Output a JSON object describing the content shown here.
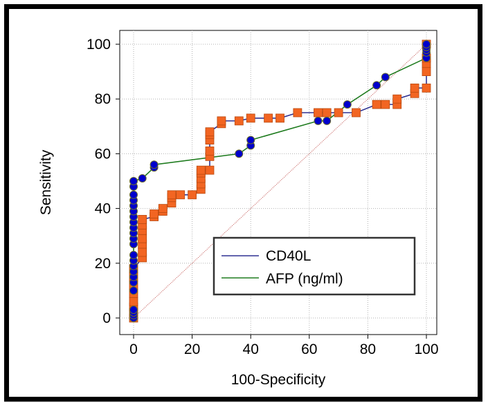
{
  "chart_data": {
    "type": "line",
    "xlabel": "100-Specificity",
    "ylabel": "Sensitivity",
    "xlim": [
      0,
      100
    ],
    "ylim": [
      0,
      100
    ],
    "x_ticks": [
      "0",
      "20",
      "40",
      "60",
      "80",
      "100"
    ],
    "y_ticks": [
      "0",
      "20",
      "40",
      "60",
      "80",
      "100"
    ],
    "grid": true,
    "legend_position": "bottom-right",
    "reference_line": {
      "from": [
        0,
        0
      ],
      "to": [
        100,
        100
      ],
      "color": "#c0504d",
      "style": "dotted"
    },
    "series": [
      {
        "name": "CD40L",
        "color": "#2e3192",
        "marker": "square",
        "marker_color": "#f26522",
        "points": [
          [
            0,
            0
          ],
          [
            0,
            2
          ],
          [
            0,
            4
          ],
          [
            0,
            6
          ],
          [
            0,
            9
          ],
          [
            0,
            12
          ],
          [
            0,
            15
          ],
          [
            0,
            18
          ],
          [
            3,
            22
          ],
          [
            3,
            24
          ],
          [
            3,
            27
          ],
          [
            3,
            29
          ],
          [
            3,
            32
          ],
          [
            3,
            34
          ],
          [
            3,
            36
          ],
          [
            7,
            37
          ],
          [
            7,
            38
          ],
          [
            10,
            39
          ],
          [
            10,
            40
          ],
          [
            13,
            42
          ],
          [
            13,
            44
          ],
          [
            13,
            45
          ],
          [
            16,
            45
          ],
          [
            20,
            45
          ],
          [
            23,
            47
          ],
          [
            23,
            49
          ],
          [
            23,
            51
          ],
          [
            23,
            53
          ],
          [
            23,
            54
          ],
          [
            26,
            54
          ],
          [
            26,
            59
          ],
          [
            26,
            61
          ],
          [
            26,
            65
          ],
          [
            26,
            67
          ],
          [
            26,
            68
          ],
          [
            30,
            71
          ],
          [
            30,
            72
          ],
          [
            36,
            72
          ],
          [
            40,
            73
          ],
          [
            46,
            73
          ],
          [
            50,
            73
          ],
          [
            56,
            75
          ],
          [
            63,
            75
          ],
          [
            66,
            75
          ],
          [
            70,
            75
          ],
          [
            76,
            75
          ],
          [
            83,
            78
          ],
          [
            86,
            78
          ],
          [
            90,
            78
          ],
          [
            90,
            80
          ],
          [
            96,
            82
          ],
          [
            96,
            84
          ],
          [
            100,
            84
          ],
          [
            100,
            90
          ],
          [
            100,
            93
          ],
          [
            100,
            95
          ],
          [
            100,
            100
          ]
        ]
      },
      {
        "name": "AFP (ng/ml)",
        "color": "#1e7b1e",
        "marker": "circle",
        "marker_color": "#0000cc",
        "points": [
          [
            0,
            0
          ],
          [
            0,
            1
          ],
          [
            0,
            2
          ],
          [
            0,
            3
          ],
          [
            0,
            10
          ],
          [
            0,
            13
          ],
          [
            0,
            15
          ],
          [
            0,
            17
          ],
          [
            0,
            19
          ],
          [
            0,
            21
          ],
          [
            0,
            23
          ],
          [
            0,
            27
          ],
          [
            0,
            29
          ],
          [
            0,
            31
          ],
          [
            0,
            33
          ],
          [
            0,
            35
          ],
          [
            0,
            37
          ],
          [
            0,
            39
          ],
          [
            0,
            41
          ],
          [
            0,
            43
          ],
          [
            0,
            45
          ],
          [
            0,
            48
          ],
          [
            0,
            50
          ],
          [
            3,
            51
          ],
          [
            7,
            55
          ],
          [
            7,
            56
          ],
          [
            36,
            60
          ],
          [
            40,
            63
          ],
          [
            40,
            65
          ],
          [
            63,
            72
          ],
          [
            66,
            72
          ],
          [
            73,
            78
          ],
          [
            83,
            85
          ],
          [
            86,
            88
          ],
          [
            100,
            95
          ],
          [
            100,
            97
          ],
          [
            100,
            98
          ],
          [
            100,
            99
          ],
          [
            100,
            100
          ]
        ]
      }
    ]
  }
}
